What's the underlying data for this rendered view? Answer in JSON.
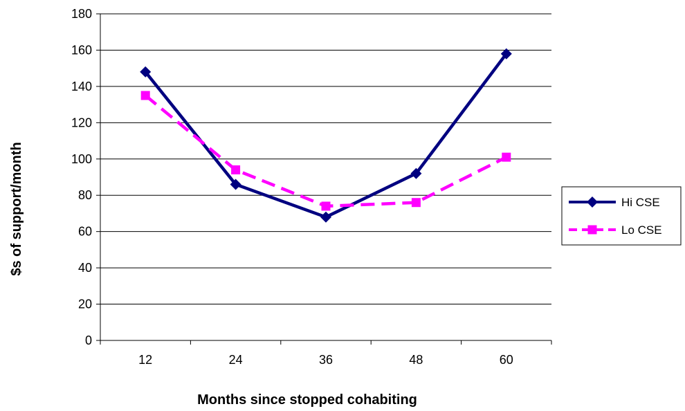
{
  "chart_data": {
    "type": "line",
    "title": "",
    "xlabel": "Months since stopped cohabiting",
    "ylabel": "$s of support/month",
    "categories": [
      "12",
      "24",
      "36",
      "48",
      "60"
    ],
    "ylim": [
      0,
      180
    ],
    "yticks": [
      0,
      20,
      40,
      60,
      80,
      100,
      120,
      140,
      160,
      180
    ],
    "grid": true,
    "legend_position": "right",
    "series": [
      {
        "name": "Hi CSE",
        "values": [
          148,
          86,
          68,
          92,
          158
        ],
        "color": "#000080",
        "marker": "diamond",
        "dash": "solid"
      },
      {
        "name": "Lo CSE",
        "values": [
          135,
          94,
          74,
          76,
          101
        ],
        "color": "#FF00FF",
        "marker": "square",
        "dash": "dashed"
      }
    ]
  }
}
